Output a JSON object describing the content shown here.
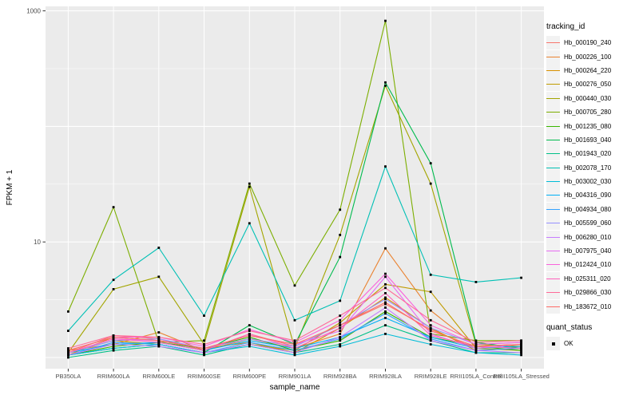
{
  "chart_data": {
    "type": "line",
    "xlabel": "sample_name",
    "ylabel": "FPKM + 1",
    "y_scale": "log10",
    "ylim": [
      1,
      1000
    ],
    "y_tick_labels": [
      "1000",
      "10"
    ],
    "y_tick_values": [
      1000,
      10
    ],
    "y_major_gridlines": [
      1000,
      100,
      10,
      1
    ],
    "y_minor_gridlines": [
      316,
      31.6,
      3.16
    ],
    "grid": true,
    "panel_bg": "#EBEBEB",
    "grid_color": "#FFFFFF",
    "point_color": "#000000",
    "legend_position": "right",
    "legend": {
      "tracking_title": "tracking_id",
      "quant_title": "quant_status",
      "quant_label": "OK"
    },
    "categories": [
      "PB350LA",
      "RRIM600LA",
      "RRIM600LE",
      "RRIM600SE",
      "RRIM600PE",
      "RRIM901LA",
      "RRIM928BA",
      "RRIM928LA",
      "RRIM928LE",
      "RRII105LA_Control",
      "RRII105LA_Stressed"
    ],
    "series": [
      {
        "name": "Hb_000190_240",
        "color": "#F8766D",
        "values": [
          1.1,
          1.55,
          1.45,
          1.15,
          1.6,
          1.25,
          1.9,
          2.9,
          1.75,
          1.2,
          1.25
        ]
      },
      {
        "name": "Hb_000226_100",
        "color": "#EA8331",
        "values": [
          1.15,
          1.3,
          1.65,
          1.15,
          1.45,
          1.2,
          1.6,
          8.8,
          2.55,
          1.25,
          1.3
        ]
      },
      {
        "name": "Hb_000264_220",
        "color": "#D89000",
        "values": [
          1.05,
          1.5,
          1.4,
          1.2,
          1.35,
          1.1,
          1.8,
          3.3,
          1.8,
          1.15,
          1.2
        ]
      },
      {
        "name": "Hb_000276_050",
        "color": "#C09B00",
        "values": [
          1.1,
          1.4,
          1.3,
          1.1,
          1.3,
          1.15,
          2.0,
          4.3,
          3.7,
          1.2,
          1.15
        ]
      },
      {
        "name": "Hb_000440_030",
        "color": "#A3A500",
        "values": [
          1.1,
          3.9,
          5.0,
          1.3,
          30,
          1.2,
          11.5,
          225,
          32,
          1.3,
          1.25
        ]
      },
      {
        "name": "Hb_000705_280",
        "color": "#7CAE00",
        "values": [
          2.5,
          20,
          1.35,
          1.4,
          32,
          4.2,
          19,
          820,
          1.6,
          1.4,
          1.4
        ]
      },
      {
        "name": "Hb_001235_080",
        "color": "#39B600",
        "values": [
          1.05,
          1.25,
          1.35,
          1.2,
          1.5,
          1.15,
          1.4,
          2.5,
          1.5,
          1.25,
          1.15
        ]
      },
      {
        "name": "Hb_001693_040",
        "color": "#00BB4E",
        "values": [
          1.05,
          1.2,
          1.3,
          1.1,
          1.9,
          1.3,
          7.4,
          240,
          48,
          1.35,
          1.2
        ]
      },
      {
        "name": "Hb_001943_020",
        "color": "#00C087",
        "values": [
          1.0,
          1.15,
          1.25,
          1.05,
          1.3,
          1.1,
          1.3,
          1.9,
          1.4,
          1.1,
          1.1
        ]
      },
      {
        "name": "Hb_002078_170",
        "color": "#00C0B5",
        "values": [
          1.7,
          4.7,
          8.9,
          2.3,
          14.5,
          2.1,
          3.1,
          45,
          5.2,
          4.5,
          4.9
        ]
      },
      {
        "name": "Hb_003002_030",
        "color": "#00BCD8",
        "values": [
          1.05,
          1.2,
          1.3,
          1.1,
          1.25,
          1.05,
          1.25,
          1.6,
          1.3,
          1.1,
          1.05
        ]
      },
      {
        "name": "Hb_004316_090",
        "color": "#00B0F6",
        "values": [
          1.1,
          1.3,
          1.35,
          1.15,
          1.4,
          1.2,
          1.5,
          2.2,
          1.5,
          1.2,
          1.25
        ]
      },
      {
        "name": "Hb_004934_080",
        "color": "#35A2FF",
        "values": [
          1.05,
          1.35,
          1.3,
          1.1,
          1.35,
          1.15,
          1.45,
          2.4,
          1.45,
          1.15,
          1.2
        ]
      },
      {
        "name": "Hb_005599_060",
        "color": "#9590FF",
        "values": [
          1.1,
          1.4,
          1.45,
          1.2,
          1.45,
          1.25,
          1.9,
          3.2,
          1.8,
          1.3,
          1.35
        ]
      },
      {
        "name": "Hb_006280_010",
        "color": "#C77CFF",
        "values": [
          1.05,
          1.3,
          1.25,
          1.1,
          1.3,
          1.1,
          1.5,
          2.7,
          1.4,
          1.15,
          1.1
        ]
      },
      {
        "name": "Hb_007975_040",
        "color": "#E76BF3",
        "values": [
          1.1,
          1.45,
          1.4,
          1.2,
          1.55,
          1.3,
          1.7,
          5.0,
          1.6,
          1.2,
          1.3
        ]
      },
      {
        "name": "Hb_012424_010",
        "color": "#FA62DB",
        "values": [
          1.15,
          1.5,
          1.5,
          1.25,
          1.75,
          1.35,
          2.1,
          5.3,
          1.9,
          1.3,
          1.35
        ]
      },
      {
        "name": "Hb_025311_020",
        "color": "#FF62BC",
        "values": [
          1.1,
          1.45,
          1.35,
          1.15,
          1.6,
          1.2,
          1.8,
          3.6,
          1.55,
          1.25,
          1.2
        ]
      },
      {
        "name": "Hb_029866_030",
        "color": "#FF6A98",
        "values": [
          1.2,
          1.55,
          1.5,
          1.3,
          1.7,
          1.4,
          2.3,
          4.0,
          2.1,
          1.35,
          1.4
        ]
      },
      {
        "name": "Hb_183672_010",
        "color": "#FF6C67",
        "values": [
          1.15,
          1.5,
          1.4,
          1.2,
          1.55,
          1.3,
          1.9,
          3.0,
          1.7,
          1.25,
          1.3
        ]
      }
    ]
  }
}
